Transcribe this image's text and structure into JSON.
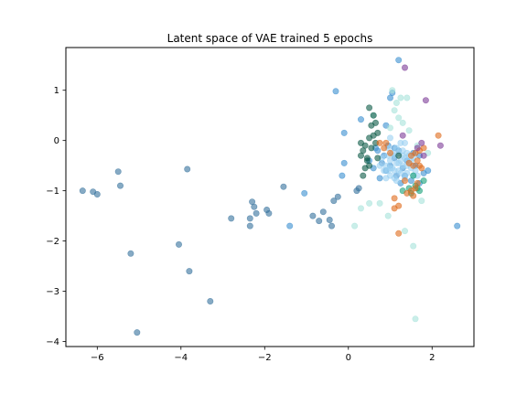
{
  "chart_data": {
    "type": "scatter",
    "title": "Latent space of VAE trained 5 epochs",
    "xlabel": "",
    "ylabel": "",
    "xlim": [
      -6.75,
      3.0
    ],
    "ylim": [
      -4.1,
      1.85
    ],
    "xticks": [
      -6,
      -4,
      -2,
      0,
      2
    ],
    "yticks": [
      -4,
      -3,
      -2,
      -1,
      0,
      1
    ],
    "grid": false,
    "legend": "none",
    "marker_alpha": 0.6,
    "series": [
      {
        "color": "#35719c",
        "points": [
          [
            -6.35,
            -1.0
          ],
          [
            -6.1,
            -1.02
          ],
          [
            -6.0,
            -1.07
          ],
          [
            -5.5,
            -0.62
          ],
          [
            -5.45,
            -0.9
          ],
          [
            -5.2,
            -2.25
          ],
          [
            -5.05,
            -3.82
          ],
          [
            -4.05,
            -2.07
          ],
          [
            -3.85,
            -0.57
          ],
          [
            -3.8,
            -2.6
          ],
          [
            -3.3,
            -3.2
          ],
          [
            -2.8,
            -1.55
          ],
          [
            -2.35,
            -1.55
          ],
          [
            -2.35,
            -1.7
          ],
          [
            -2.3,
            -1.22
          ],
          [
            -2.25,
            -1.32
          ],
          [
            -2.2,
            -1.45
          ],
          [
            -1.95,
            -1.38
          ],
          [
            -1.9,
            -1.45
          ],
          [
            -1.55,
            -0.92
          ],
          [
            -0.85,
            -1.5
          ],
          [
            -0.7,
            -1.6
          ],
          [
            -0.45,
            -1.58
          ],
          [
            -0.4,
            -1.7
          ],
          [
            -0.35,
            -1.2
          ],
          [
            -0.25,
            -1.12
          ],
          [
            -0.6,
            -1.42
          ],
          [
            0.2,
            -1.0
          ],
          [
            0.25,
            -0.95
          ]
        ]
      },
      {
        "color": "#3a8fd0",
        "points": [
          [
            -0.3,
            0.98
          ],
          [
            -0.15,
            -0.7
          ],
          [
            -0.1,
            0.15
          ],
          [
            0.3,
            0.42
          ],
          [
            0.5,
            -0.4
          ],
          [
            0.6,
            -0.55
          ],
          [
            0.7,
            -0.2
          ],
          [
            0.8,
            -0.45
          ],
          [
            0.85,
            -0.3
          ],
          [
            0.9,
            -0.6
          ],
          [
            1.0,
            -0.5
          ],
          [
            1.05,
            0.95
          ],
          [
            1.1,
            -0.35
          ],
          [
            1.15,
            -0.7
          ],
          [
            1.2,
            -0.2
          ],
          [
            1.3,
            -0.55
          ],
          [
            1.4,
            -0.4
          ],
          [
            1.5,
            -0.8
          ],
          [
            1.6,
            -0.5
          ],
          [
            1.7,
            -0.3
          ],
          [
            1.8,
            -0.65
          ],
          [
            1.9,
            -0.6
          ],
          [
            2.6,
            -1.7
          ],
          [
            -1.4,
            -1.7
          ],
          [
            -1.05,
            -1.05
          ],
          [
            1.2,
            1.6
          ],
          [
            0.95,
            -0.1
          ],
          [
            1.25,
            -0.85
          ],
          [
            0.75,
            -0.75
          ],
          [
            1.55,
            -0.25
          ],
          [
            0.65,
            -0.15
          ],
          [
            1.35,
            -0.7
          ],
          [
            1.7,
            -0.85
          ],
          [
            0.9,
            0.3
          ],
          [
            1.1,
            -0.15
          ],
          [
            -0.1,
            -0.45
          ],
          [
            1.0,
            0.85
          ]
        ]
      },
      {
        "color": "#9bd0f2",
        "points": [
          [
            0.8,
            -0.35
          ],
          [
            0.9,
            -0.5
          ],
          [
            0.95,
            -0.6
          ],
          [
            1.0,
            -0.4
          ],
          [
            1.05,
            -0.55
          ],
          [
            1.1,
            -0.3
          ],
          [
            1.15,
            -0.45
          ],
          [
            1.2,
            -0.6
          ],
          [
            1.25,
            -0.4
          ],
          [
            1.3,
            -0.5
          ],
          [
            1.35,
            -0.35
          ],
          [
            1.4,
            -0.65
          ],
          [
            1.45,
            -0.45
          ],
          [
            1.5,
            -0.55
          ],
          [
            1.0,
            -0.7
          ],
          [
            1.1,
            -0.75
          ],
          [
            1.2,
            -0.25
          ],
          [
            1.3,
            -0.2
          ],
          [
            0.85,
            -0.6
          ],
          [
            1.4,
            -0.25
          ],
          [
            1.25,
            -0.65
          ],
          [
            1.05,
            -0.25
          ],
          [
            0.95,
            -0.3
          ],
          [
            1.55,
            -0.35
          ],
          [
            1.6,
            -0.6
          ],
          [
            1.15,
            -0.8
          ],
          [
            1.35,
            -0.75
          ],
          [
            0.9,
            -0.75
          ],
          [
            1.45,
            -0.3
          ],
          [
            1.2,
            -0.45
          ],
          [
            1.3,
            -0.3
          ],
          [
            1.0,
            -0.55
          ],
          [
            1.1,
            -0.6
          ],
          [
            1.4,
            -0.5
          ],
          [
            1.5,
            -0.4
          ],
          [
            0.75,
            -0.5
          ],
          [
            1.25,
            -0.05
          ],
          [
            1.0,
            0.05
          ],
          [
            1.65,
            -0.7
          ],
          [
            1.55,
            -0.7
          ],
          [
            1.15,
            -0.15
          ],
          [
            0.95,
            -0.15
          ],
          [
            1.35,
            -0.05
          ]
        ]
      },
      {
        "color": "#a6e3da",
        "points": [
          [
            1.05,
            1.0
          ],
          [
            1.15,
            0.75
          ],
          [
            1.2,
            0.45
          ],
          [
            1.3,
            0.35
          ],
          [
            1.25,
            0.85
          ],
          [
            1.4,
            0.85
          ],
          [
            1.1,
            0.6
          ],
          [
            1.0,
            0.25
          ],
          [
            0.5,
            -1.25
          ],
          [
            0.3,
            -1.35
          ],
          [
            0.15,
            -1.7
          ],
          [
            0.75,
            -1.25
          ],
          [
            0.95,
            -1.5
          ],
          [
            1.35,
            -1.8
          ],
          [
            1.55,
            -2.1
          ],
          [
            1.75,
            -1.2
          ],
          [
            1.9,
            -0.25
          ],
          [
            0.6,
            0.5
          ],
          [
            1.6,
            -3.55
          ],
          [
            1.65,
            -0.1
          ],
          [
            1.45,
            0.2
          ]
        ]
      },
      {
        "color": "#0c5a46",
        "points": [
          [
            0.3,
            -0.05
          ],
          [
            0.35,
            -0.2
          ],
          [
            0.4,
            -0.1
          ],
          [
            0.45,
            -0.35
          ],
          [
            0.5,
            -0.5
          ],
          [
            0.55,
            0.3
          ],
          [
            0.6,
            0.5
          ],
          [
            0.65,
            0.35
          ],
          [
            0.7,
            0.15
          ],
          [
            0.55,
            -0.15
          ],
          [
            0.5,
            0.65
          ],
          [
            0.4,
            -0.55
          ],
          [
            0.35,
            -0.7
          ],
          [
            0.45,
            -0.4
          ],
          [
            0.65,
            -0.05
          ],
          [
            0.5,
            0.05
          ],
          [
            0.6,
            0.1
          ],
          [
            0.7,
            -0.35
          ],
          [
            0.3,
            -0.3
          ],
          [
            1.2,
            -0.3
          ]
        ]
      },
      {
        "color": "#17a078",
        "points": [
          [
            1.6,
            -0.9
          ],
          [
            1.7,
            -1.0
          ],
          [
            1.8,
            -0.8
          ],
          [
            1.5,
            -1.05
          ],
          [
            1.55,
            -0.7
          ],
          [
            1.65,
            -0.95
          ],
          [
            1.3,
            -1.0
          ],
          [
            1.45,
            -0.95
          ]
        ]
      },
      {
        "color": "#e06a1b",
        "points": [
          [
            0.75,
            -0.05
          ],
          [
            0.85,
            -0.15
          ],
          [
            0.9,
            -0.05
          ],
          [
            1.5,
            -0.3
          ],
          [
            1.6,
            -0.25
          ],
          [
            1.65,
            -0.4
          ],
          [
            1.7,
            -0.2
          ],
          [
            1.45,
            -0.45
          ],
          [
            1.55,
            -0.5
          ],
          [
            1.7,
            -0.5
          ],
          [
            1.4,
            -1.05
          ],
          [
            1.5,
            -1.0
          ],
          [
            1.6,
            -0.95
          ],
          [
            1.75,
            -0.55
          ],
          [
            1.65,
            -0.85
          ],
          [
            1.2,
            -1.3
          ],
          [
            1.1,
            -1.35
          ],
          [
            1.2,
            -1.85
          ],
          [
            2.15,
            0.1
          ],
          [
            1.8,
            -0.15
          ],
          [
            1.35,
            -0.8
          ],
          [
            1.0,
            -0.25
          ],
          [
            1.1,
            -1.15
          ],
          [
            1.55,
            -1.1
          ]
        ]
      },
      {
        "color": "#7d3c98",
        "points": [
          [
            1.35,
            1.45
          ],
          [
            1.85,
            0.8
          ],
          [
            2.2,
            -0.1
          ],
          [
            1.75,
            -0.05
          ],
          [
            1.65,
            -0.15
          ],
          [
            1.8,
            -0.3
          ],
          [
            1.3,
            0.1
          ]
        ]
      }
    ]
  }
}
